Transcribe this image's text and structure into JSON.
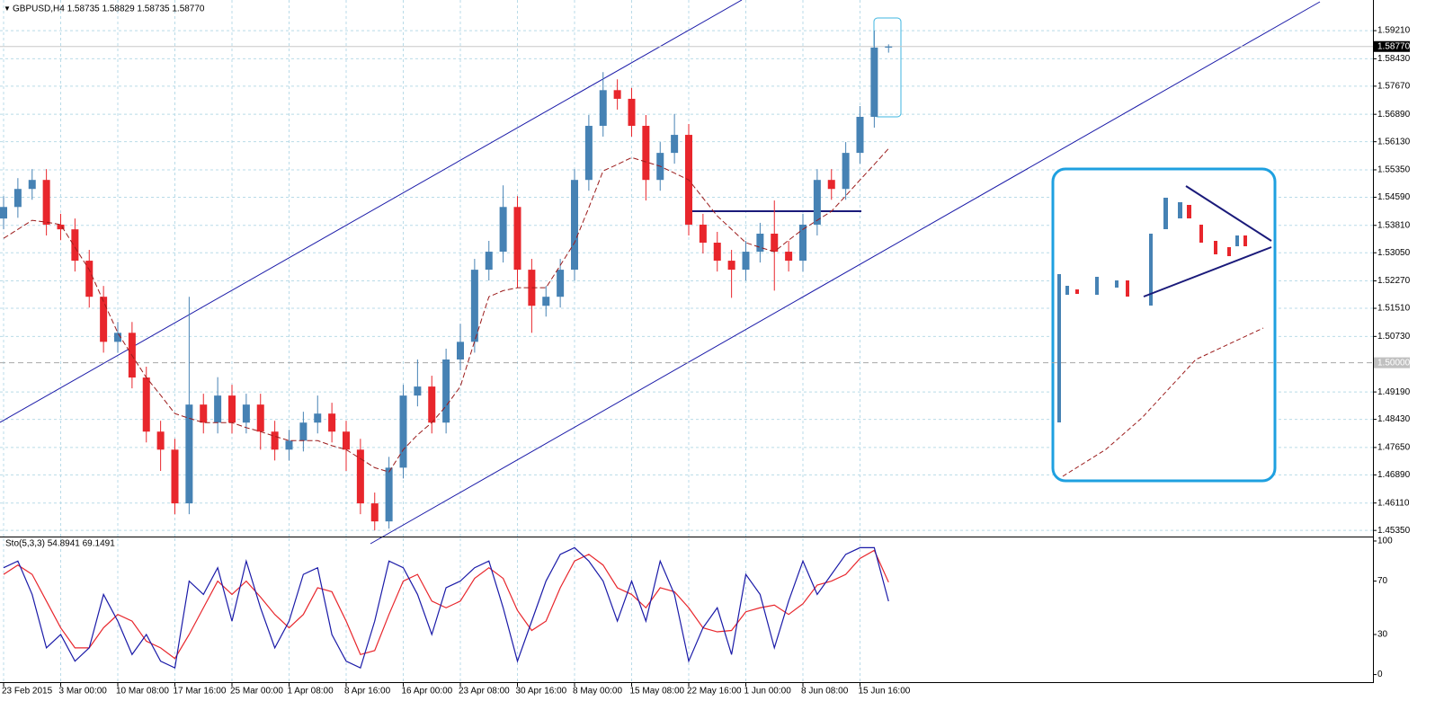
{
  "chart_data": [
    {
      "type": "candlestick",
      "title": "GBPUSD,H4  1.58735 1.58829 1.58735 1.58770",
      "categories": [
        "23 Feb 2015",
        null,
        null,
        null,
        "3 Mar 00:00",
        null,
        null,
        null,
        "10 Mar 08:00",
        null,
        null,
        null,
        "17 Mar 16:00",
        null,
        null,
        null,
        "25 Mar 00:00",
        null,
        null,
        null,
        "1 Apr 08:00",
        null,
        null,
        null,
        "8 Apr 16:00",
        null,
        null,
        null,
        "16 Apr 00:00",
        null,
        null,
        null,
        "23 Apr 08:00",
        null,
        null,
        null,
        "30 Apr 16:00",
        null,
        null,
        null,
        "8 May 00:00",
        null,
        null,
        null,
        "15 May 08:00",
        null,
        null,
        null,
        "22 May 16:00",
        null,
        null,
        null,
        "1 Jun 00:00",
        null,
        null,
        null,
        "8 Jun 08:00",
        null,
        null,
        null,
        "15 Jun 16:00",
        null,
        null
      ],
      "open": [
        1.54,
        1.5432,
        1.5482,
        1.5507,
        1.5383,
        1.537,
        1.5283,
        1.5183,
        1.5058,
        1.5083,
        1.4959,
        1.4809,
        1.4759,
        1.461,
        1.4884,
        1.4834,
        1.4909,
        1.4834,
        1.4884,
        1.4809,
        1.4759,
        1.4784,
        1.4834,
        1.4859,
        1.4809,
        1.4759,
        1.461,
        1.456,
        1.4709,
        1.4909,
        1.4934,
        1.4834,
        1.5009,
        1.5058,
        1.5258,
        1.5308,
        1.5432,
        1.5258,
        1.5158,
        1.5183,
        1.5258,
        1.5507,
        1.5657,
        1.5756,
        1.5732,
        1.5657,
        1.5507,
        1.5582,
        1.5632,
        1.5383,
        1.5333,
        1.5283,
        1.5258,
        1.5308,
        1.5358,
        1.5308,
        1.5283,
        1.5383,
        1.5507,
        1.5482,
        1.5582,
        1.5682,
        1.5874
      ],
      "high": [
        1.5462,
        1.5512,
        1.5537,
        1.5537,
        1.5413,
        1.54,
        1.5313,
        1.5213,
        1.5113,
        1.5113,
        1.4989,
        1.4839,
        1.4789,
        1.5183,
        1.4914,
        1.496,
        1.4939,
        1.4914,
        1.4914,
        1.4839,
        1.4814,
        1.4864,
        1.4909,
        1.4889,
        1.4839,
        1.4789,
        1.464,
        1.4739,
        1.4939,
        1.5009,
        1.4964,
        1.5039,
        1.5108,
        1.5288,
        1.5338,
        1.5492,
        1.5462,
        1.5288,
        1.5213,
        1.5288,
        1.5537,
        1.5687,
        1.5806,
        1.5786,
        1.5762,
        1.5687,
        1.5612,
        1.569,
        1.5662,
        1.5413,
        1.5363,
        1.5313,
        1.5338,
        1.5388,
        1.545,
        1.5338,
        1.5413,
        1.5537,
        1.5537,
        1.5612,
        1.5712,
        1.5921,
        1.5883
      ],
      "low": [
        1.537,
        1.5402,
        1.5452,
        1.5353,
        1.534,
        1.5253,
        1.5153,
        1.5028,
        1.5028,
        1.4929,
        1.4779,
        1.47,
        1.458,
        1.458,
        1.4804,
        1.4804,
        1.4804,
        1.4804,
        1.4759,
        1.4729,
        1.4729,
        1.4754,
        1.4804,
        1.4779,
        1.47,
        1.458,
        1.4535,
        1.454,
        1.4679,
        1.4879,
        1.4804,
        1.4804,
        1.4979,
        1.5028,
        1.5228,
        1.5278,
        1.5208,
        1.5083,
        1.5128,
        1.5153,
        1.5228,
        1.5477,
        1.5627,
        1.5702,
        1.5627,
        1.545,
        1.5477,
        1.5552,
        1.5353,
        1.5303,
        1.5253,
        1.518,
        1.5228,
        1.5278,
        1.52,
        1.5253,
        1.5253,
        1.5353,
        1.5452,
        1.5452,
        1.5552,
        1.5652,
        1.586
      ],
      "close": [
        1.5432,
        1.5482,
        1.5507,
        1.5383,
        1.537,
        1.5283,
        1.5183,
        1.5058,
        1.5083,
        1.4959,
        1.4809,
        1.4759,
        1.461,
        1.4884,
        1.4834,
        1.4909,
        1.4834,
        1.4884,
        1.4809,
        1.4759,
        1.4784,
        1.4834,
        1.4859,
        1.4809,
        1.4759,
        1.461,
        1.456,
        1.4709,
        1.4909,
        1.4934,
        1.4834,
        1.5009,
        1.5058,
        1.5258,
        1.5308,
        1.5432,
        1.5258,
        1.5158,
        1.5183,
        1.5258,
        1.5507,
        1.5657,
        1.5756,
        1.5732,
        1.5657,
        1.5507,
        1.5582,
        1.5632,
        1.5383,
        1.5333,
        1.5283,
        1.5258,
        1.5308,
        1.5358,
        1.5308,
        1.5283,
        1.5383,
        1.5507,
        1.5482,
        1.5582,
        1.5682,
        1.5874,
        1.5877
      ],
      "up_color": "#4682b4",
      "down_color": "#e8262c",
      "ma_values": [
        1.5345,
        1.537,
        1.5395,
        1.539,
        1.5383,
        1.532,
        1.5258,
        1.517,
        1.5083,
        1.502,
        1.4959,
        1.491,
        1.4859,
        1.4846,
        1.4834,
        1.4834,
        1.4834,
        1.482,
        1.4809,
        1.4796,
        1.4784,
        1.4784,
        1.4784,
        1.477,
        1.4759,
        1.4734,
        1.4709,
        1.4697,
        1.4759,
        1.48,
        1.4834,
        1.488,
        1.4934,
        1.506,
        1.5183,
        1.52,
        1.5208,
        1.5208,
        1.5208,
        1.527,
        1.5333,
        1.543,
        1.5532,
        1.555,
        1.5569,
        1.5557,
        1.5545,
        1.5526,
        1.5507,
        1.5457,
        1.5407,
        1.537,
        1.5333,
        1.532,
        1.5308,
        1.534,
        1.537,
        1.5395,
        1.542,
        1.5463,
        1.5507,
        1.555,
        1.5594
      ],
      "ma_color": "#9b1b1b",
      "ylim": [
        1.4518,
        1.6006
      ],
      "yticks": [
        {
          "value": 1.5921,
          "label": "1.59210"
        },
        {
          "value": 1.5843,
          "label": "1.58430"
        },
        {
          "value": 1.5767,
          "label": "1.57670"
        },
        {
          "value": 1.5689,
          "label": "1.56890"
        },
        {
          "value": 1.5613,
          "label": "1.56130"
        },
        {
          "value": 1.5535,
          "label": "1.55350"
        },
        {
          "value": 1.5459,
          "label": "1.54590"
        },
        {
          "value": 1.5381,
          "label": "1.53810"
        },
        {
          "value": 1.5305,
          "label": "1.53050"
        },
        {
          "value": 1.5227,
          "label": "1.52270"
        },
        {
          "value": 1.5151,
          "label": "1.51510"
        },
        {
          "value": 1.5073,
          "label": "1.50730"
        },
        {
          "value": 1.4919,
          "label": "1.49190"
        },
        {
          "value": 1.4843,
          "label": "1.48430"
        },
        {
          "value": 1.4765,
          "label": "1.47650"
        },
        {
          "value": 1.4689,
          "label": "1.46890"
        },
        {
          "value": 1.4611,
          "label": "1.46110"
        },
        {
          "value": 1.4535,
          "label": "1.45350"
        }
      ],
      "price_line": {
        "value": 1.5877,
        "label": "1.58770"
      },
      "level_line": {
        "value": 1.5,
        "label": "1.50000"
      },
      "grid": true
    },
    {
      "type": "line",
      "title": "Sto(5,3,3) 54.8941 69.1491",
      "series": [
        {
          "color": "#1a1aa8",
          "values": [
            80,
            85,
            60,
            20,
            30,
            10,
            20,
            60,
            40,
            15,
            30,
            10,
            5,
            70,
            60,
            80,
            40,
            85,
            50,
            20,
            40,
            75,
            80,
            30,
            10,
            5,
            40,
            85,
            80,
            60,
            30,
            65,
            70,
            80,
            85,
            50,
            10,
            40,
            70,
            90,
            95,
            85,
            70,
            40,
            70,
            40,
            85,
            60,
            10,
            35,
            50,
            15,
            75,
            60,
            20,
            55,
            85,
            60,
            75,
            90,
            95,
            95,
            54.8941
          ]
        },
        {
          "color": "#e8262c",
          "values": [
            75,
            82,
            75,
            55,
            35,
            20,
            20,
            35,
            45,
            40,
            25,
            20,
            12,
            30,
            50,
            70,
            60,
            70,
            58,
            45,
            35,
            45,
            65,
            62,
            40,
            15,
            18,
            45,
            70,
            75,
            55,
            50,
            55,
            72,
            80,
            72,
            48,
            33,
            40,
            65,
            85,
            90,
            82,
            65,
            60,
            50,
            65,
            62,
            50,
            35,
            32,
            33,
            47,
            50,
            52,
            45,
            53,
            67,
            70,
            75,
            87,
            93,
            69.1491
          ]
        }
      ],
      "ylim": [
        -5,
        102
      ],
      "yticks": [
        0,
        30,
        70,
        100
      ]
    }
  ]
}
